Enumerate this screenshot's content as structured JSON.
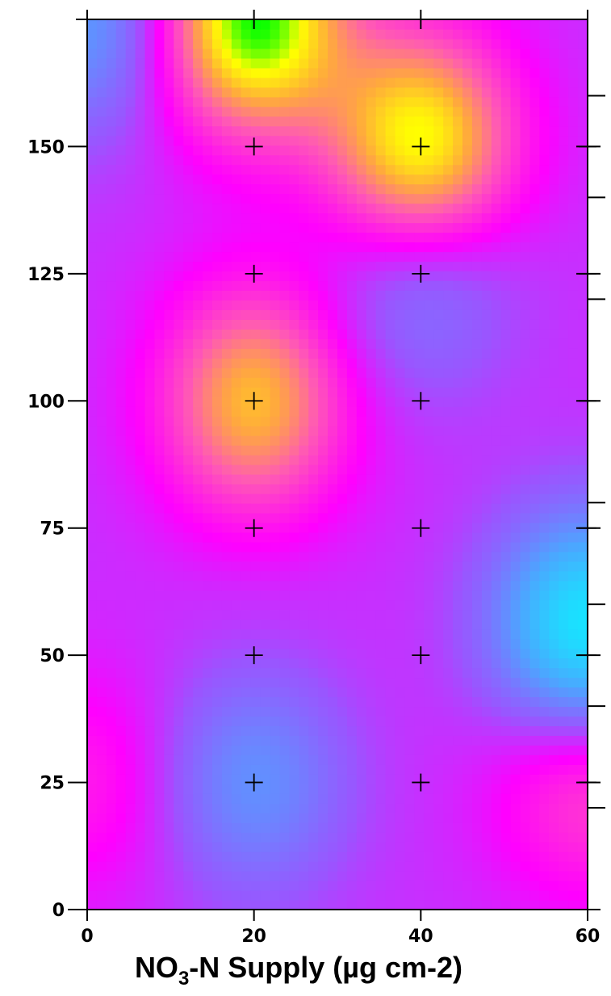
{
  "chart_data": {
    "type": "heatmap",
    "title": "",
    "xlabel": {
      "prefix": "NO",
      "subscript": "3",
      "suffix": "-N Supply (µg cm-2)"
    },
    "ylabel": "",
    "xlim": [
      0,
      60
    ],
    "ylim": [
      0,
      175
    ],
    "x_ticks": [
      0,
      20,
      40,
      60
    ],
    "x_tick_labels": [
      "0",
      "20",
      "40",
      "60"
    ],
    "y_ticks": [
      0,
      25,
      50,
      75,
      100,
      125,
      150
    ],
    "y_tick_labels": [
      "0",
      "25",
      "50",
      "75",
      "100",
      "125",
      "150"
    ],
    "right_axis_minor_ticks": [
      20,
      40,
      60,
      80,
      120,
      140,
      160
    ],
    "grid": false,
    "legend": "none",
    "sample_points": [
      {
        "x": 20,
        "y": 25
      },
      {
        "x": 40,
        "y": 25
      },
      {
        "x": 60,
        "y": 25
      },
      {
        "x": 20,
        "y": 50
      },
      {
        "x": 40,
        "y": 50
      },
      {
        "x": 60,
        "y": 50
      },
      {
        "x": 20,
        "y": 75
      },
      {
        "x": 40,
        "y": 75
      },
      {
        "x": 60,
        "y": 75
      },
      {
        "x": 20,
        "y": 100
      },
      {
        "x": 40,
        "y": 100
      },
      {
        "x": 60,
        "y": 100
      },
      {
        "x": 20,
        "y": 125
      },
      {
        "x": 40,
        "y": 125
      },
      {
        "x": 60,
        "y": 125
      },
      {
        "x": 20,
        "y": 150
      },
      {
        "x": 40,
        "y": 150
      },
      {
        "x": 60,
        "y": 150
      }
    ],
    "surface_points": [
      {
        "x": 20,
        "y": 175,
        "v": 1.0
      },
      {
        "x": 40,
        "y": 150,
        "v": 0.88
      },
      {
        "x": 20,
        "y": 100,
        "v": 0.66
      },
      {
        "x": 40,
        "y": 125,
        "v": -0.3
      },
      {
        "x": 0,
        "y": 175,
        "v": -0.4
      },
      {
        "x": 60,
        "y": 55,
        "v": -0.8
      },
      {
        "x": 20,
        "y": 25,
        "v": -0.35
      },
      {
        "x": 0,
        "y": 25,
        "v": 0.2
      },
      {
        "x": 60,
        "y": 25,
        "v": 0.35
      }
    ],
    "color_ramp": [
      {
        "v": -0.9,
        "color": "#00ffff"
      },
      {
        "v": -0.45,
        "color": "#4aa8ff"
      },
      {
        "v": -0.1,
        "color": "#9a55ff"
      },
      {
        "v": 0.12,
        "color": "#ff00ff"
      },
      {
        "v": 0.4,
        "color": "#ff5ab4"
      },
      {
        "v": 0.62,
        "color": "#ffaa3c"
      },
      {
        "v": 0.82,
        "color": "#ffff00"
      },
      {
        "v": 1.0,
        "color": "#00ff00"
      }
    ]
  }
}
